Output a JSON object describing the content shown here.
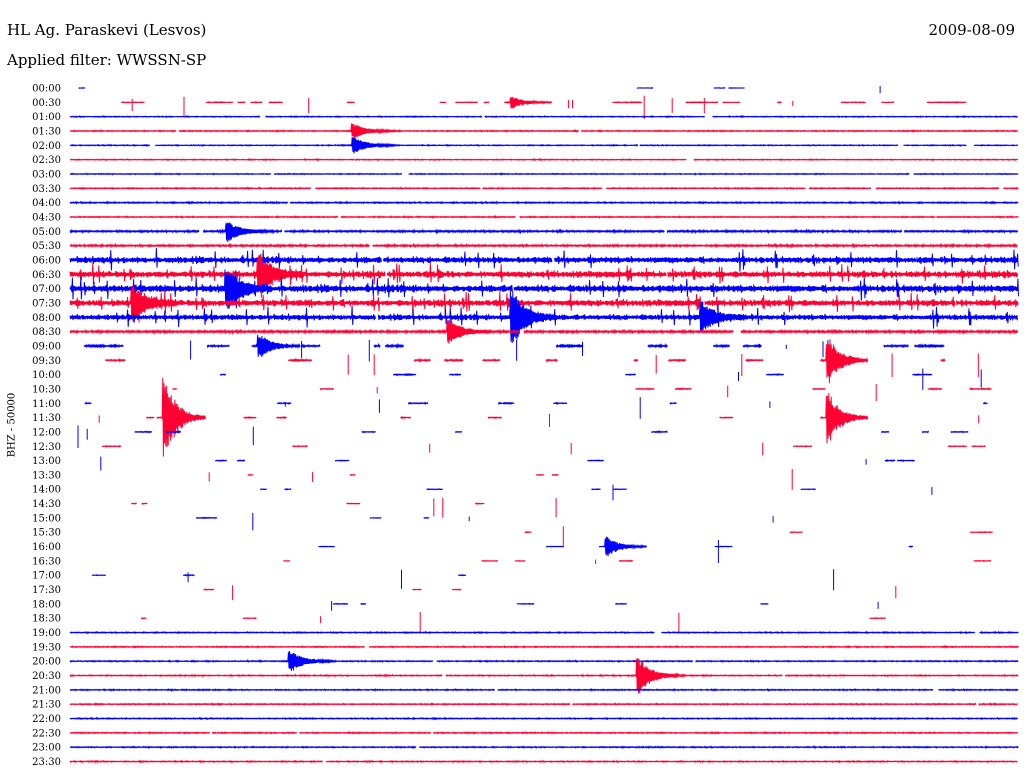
{
  "header": {
    "station": "HL Ag. Paraskevi (Lesvos)",
    "date": "2009-08-09",
    "filter": "Applied filter: WWSSN-SP"
  },
  "chart_data": {
    "type": "line",
    "title": "HL Ag. Paraskevi (Lesvos)",
    "subtitle": "Applied filter: WWSSN-SP",
    "ylabel": "BHZ - 50000",
    "colors": [
      "#0000ff",
      "#ff0033"
    ],
    "grid": false,
    "legend": "none",
    "y_tick_labels": [
      "00:00",
      "00:30",
      "01:00",
      "01:30",
      "02:00",
      "02:30",
      "03:00",
      "03:30",
      "04:00",
      "04:30",
      "05:00",
      "05:30",
      "06:00",
      "06:30",
      "07:00",
      "07:30",
      "08:00",
      "08:30",
      "09:00",
      "09:30",
      "10:00",
      "10:30",
      "11:00",
      "11:30",
      "12:00",
      "12:30",
      "13:00",
      "13:30",
      "14:00",
      "14:30",
      "15:00",
      "15:30",
      "16:00",
      "16:30",
      "17:00",
      "17:30",
      "18:00",
      "18:30",
      "19:00",
      "19:30",
      "20:00",
      "20:30",
      "21:00",
      "21:30",
      "22:00",
      "22:30",
      "23:00",
      "23:30"
    ],
    "activity": [
      0.03,
      0.35,
      0.55,
      0.7,
      0.6,
      0.6,
      0.65,
      0.7,
      0.75,
      0.75,
      0.85,
      0.9,
      1.0,
      1.0,
      1.0,
      1.0,
      0.95,
      0.5,
      0.3,
      0.2,
      0.1,
      0.1,
      0.1,
      0.1,
      0.1,
      0.08,
      0.08,
      0.06,
      0.06,
      0.06,
      0.05,
      0.05,
      0.05,
      0.04,
      0.03,
      0.03,
      0.03,
      0.02,
      0.6,
      0.8,
      0.85,
      0.85,
      0.6,
      0.75,
      0.9,
      0.9,
      0.9,
      0.9
    ],
    "noise_level": [
      0.15,
      0.2,
      0.25,
      0.3,
      0.25,
      0.25,
      0.25,
      0.3,
      0.35,
      0.3,
      0.5,
      0.5,
      1.6,
      1.6,
      1.8,
      1.6,
      1.4,
      0.6,
      0.5,
      0.4,
      0.3,
      0.3,
      0.3,
      0.3,
      0.3,
      0.25,
      0.25,
      0.2,
      0.2,
      0.2,
      0.2,
      0.2,
      0.2,
      0.2,
      0.2,
      0.2,
      0.2,
      0.2,
      0.3,
      0.3,
      0.3,
      0.3,
      0.3,
      0.3,
      0.3,
      0.3,
      0.3,
      0.3
    ],
    "events": [
      {
        "t": "00:30",
        "minute": 14,
        "amplitude": 6
      },
      {
        "t": "01:30",
        "minute": 9,
        "amplitude": 7
      },
      {
        "t": "02:00",
        "minute": 9,
        "amplitude": 8
      },
      {
        "t": "05:00",
        "minute": 5,
        "amplitude": 10
      },
      {
        "t": "06:30",
        "minute": 6,
        "amplitude": 18
      },
      {
        "t": "07:00",
        "minute": 5,
        "amplitude": 18
      },
      {
        "t": "07:30",
        "minute": 2,
        "amplitude": 16
      },
      {
        "t": "08:00",
        "minute": 14,
        "amplitude": 26
      },
      {
        "t": "08:00",
        "minute": 20,
        "amplitude": 14
      },
      {
        "t": "08:30",
        "minute": 12,
        "amplitude": 12
      },
      {
        "t": "09:00",
        "minute": 6,
        "amplitude": 12
      },
      {
        "t": "09:30",
        "minute": 24,
        "amplitude": 24
      },
      {
        "t": "11:30",
        "minute": 24,
        "amplitude": 26
      },
      {
        "t": "11:30",
        "minute": 3,
        "amplitude": 40
      },
      {
        "t": "16:00",
        "minute": 17,
        "amplitude": 10
      },
      {
        "t": "20:00",
        "minute": 7,
        "amplitude": 10
      },
      {
        "t": "20:30",
        "minute": 18,
        "amplitude": 18
      }
    ]
  }
}
